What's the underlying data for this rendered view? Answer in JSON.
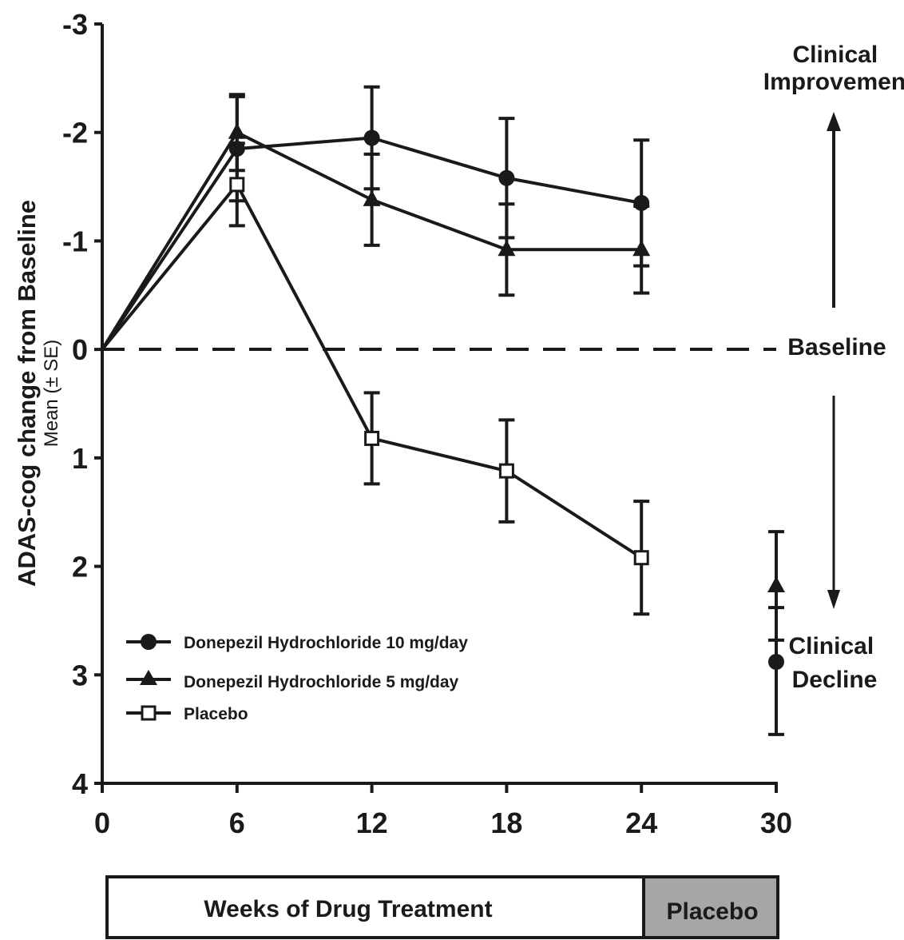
{
  "chart_data": {
    "type": "line",
    "ylabel": "ADAS-cog change from Baseline",
    "ylabel_sub": "Mean (± SE)",
    "x_ticks": [
      0,
      6,
      12,
      18,
      24,
      30
    ],
    "y_ticks": [
      -3,
      -2,
      -1,
      0,
      1,
      2,
      3,
      4
    ],
    "xlim": [
      0,
      30
    ],
    "ylim": [
      -3,
      4
    ],
    "y_inverted": true,
    "baseline_y": 0,
    "grid": false,
    "legend_position": "bottom-left",
    "colors": {
      "ink": "#1a1a1a",
      "placebo_band": "#a6a6a6"
    },
    "series": [
      {
        "name": "Donepezil Hydrochloride 10 mg/day",
        "marker": "circle",
        "x": [
          0,
          6,
          12,
          18,
          24
        ],
        "y": [
          0,
          -1.85,
          -1.95,
          -1.58,
          -1.35
        ],
        "err": [
          0,
          0.48,
          0.47,
          0.55,
          0.58
        ]
      },
      {
        "name": "Donepezil Hydrochloride 5 mg/day",
        "marker": "triangle",
        "x": [
          0,
          6,
          12,
          18,
          24
        ],
        "y": [
          0,
          -2.0,
          -1.38,
          -0.92,
          -0.92
        ],
        "err": [
          0,
          0.35,
          0.42,
          0.42,
          0.4
        ]
      },
      {
        "name": "Placebo",
        "marker": "square",
        "x": [
          0,
          6,
          12,
          18,
          24
        ],
        "y": [
          0,
          -1.52,
          0.82,
          1.12,
          1.92
        ],
        "err": [
          0,
          0.38,
          0.42,
          0.47,
          0.52
        ]
      }
    ],
    "endpoint_markers": [
      {
        "x": 30,
        "y": 2.18,
        "marker": "triangle",
        "err_low": 1.68,
        "err_high": 2.68
      },
      {
        "x": 30,
        "y": 2.88,
        "marker": "circle",
        "err_low": 2.38,
        "err_high": 3.55
      }
    ],
    "annotations": {
      "improvement": "Clinical Improvement",
      "baseline": "Baseline",
      "decline": "Clinical Decline"
    },
    "phase_bar": [
      {
        "label": "Weeks of Drug Treatment",
        "from": 0,
        "to": 24
      },
      {
        "label": "Placebo",
        "from": 24,
        "to": 30
      }
    ]
  }
}
